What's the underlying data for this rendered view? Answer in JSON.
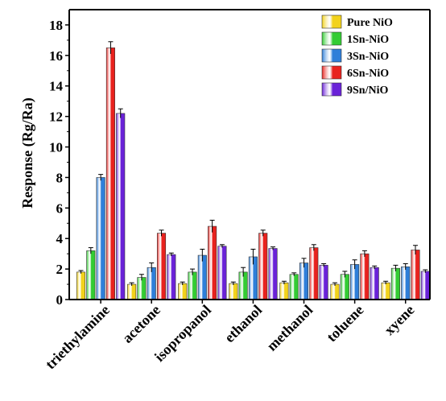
{
  "chart_data": {
    "type": "bar",
    "title": "",
    "xlabel": "",
    "ylabel": "Response (Rg/Ra)",
    "ylim": [
      0,
      19
    ],
    "yticks": [
      0,
      2,
      4,
      6,
      8,
      10,
      12,
      14,
      16,
      18
    ],
    "grid": false,
    "legend_position": "top-right",
    "categories": [
      "triethylamine",
      "acetone",
      "isopropanol",
      "ethanol",
      "methanol",
      "toluene",
      "xyene"
    ],
    "series": [
      {
        "name": "Pure NiO",
        "color": "#f2d21b",
        "values": [
          1.8,
          1.0,
          1.05,
          1.05,
          1.1,
          1.0,
          1.1
        ],
        "errors": [
          0.1,
          0.1,
          0.1,
          0.1,
          0.1,
          0.1,
          0.1
        ]
      },
      {
        "name": "1Sn-NiO",
        "color": "#33cc33",
        "values": [
          3.2,
          1.45,
          1.8,
          1.8,
          1.65,
          1.65,
          2.05
        ],
        "errors": [
          0.2,
          0.2,
          0.2,
          0.3,
          0.1,
          0.2,
          0.2
        ]
      },
      {
        "name": "3Sn-NiO",
        "color": "#2e7fd9",
        "values": [
          8.0,
          2.1,
          2.9,
          2.8,
          2.4,
          2.3,
          2.15
        ],
        "errors": [
          0.2,
          0.3,
          0.4,
          0.5,
          0.3,
          0.3,
          0.2
        ]
      },
      {
        "name": "6Sn-NiO",
        "color": "#e8221e",
        "values": [
          16.5,
          4.35,
          4.8,
          4.35,
          3.4,
          3.0,
          3.25
        ],
        "errors": [
          0.4,
          0.2,
          0.4,
          0.2,
          0.2,
          0.2,
          0.3
        ]
      },
      {
        "name": "9Sn/NiO",
        "color": "#6a22d8",
        "values": [
          12.2,
          2.95,
          3.5,
          3.35,
          2.25,
          2.1,
          1.85
        ],
        "errors": [
          0.3,
          0.1,
          0.1,
          0.1,
          0.1,
          0.1,
          0.1
        ]
      }
    ]
  }
}
